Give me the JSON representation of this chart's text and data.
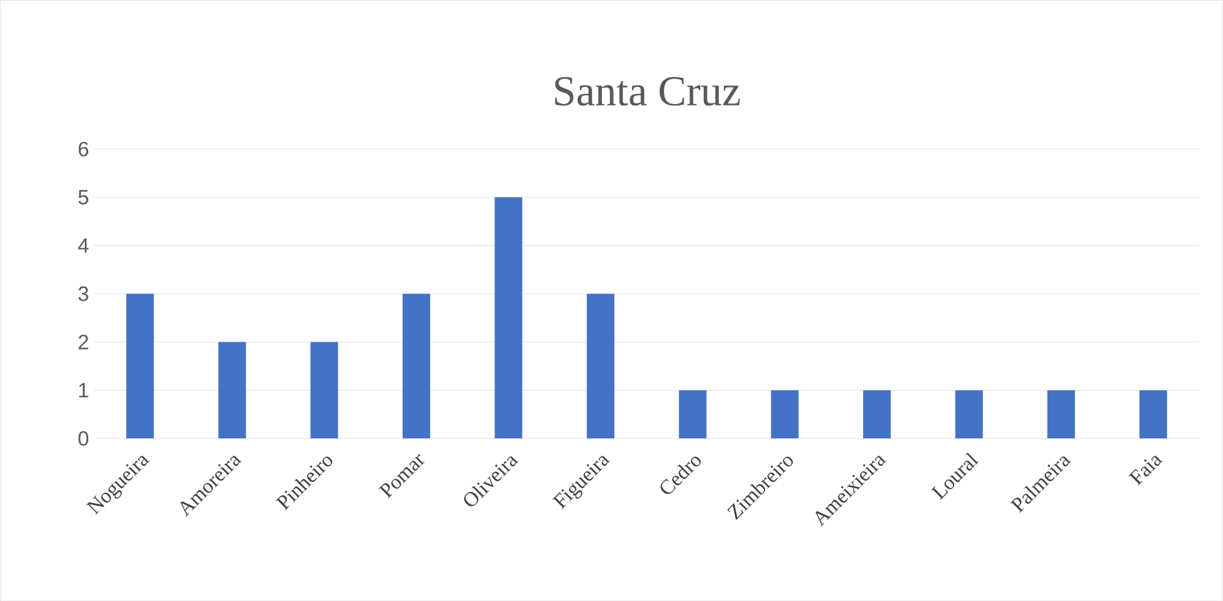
{
  "chart_data": {
    "type": "bar",
    "title": "Santa Cruz",
    "categories": [
      "Nogueira",
      "Amoreira",
      "Pinheiro",
      "Pomar",
      "Oliveira",
      "Figueira",
      "Cedro",
      "Zimbreiro",
      "Ameixieira",
      "Loural",
      "Palmeira",
      "Faia"
    ],
    "values": [
      3,
      2,
      2,
      3,
      5,
      3,
      1,
      1,
      1,
      1,
      1,
      1
    ],
    "color": "#4472c4",
    "ylim": [
      0,
      6
    ],
    "yticks": [
      0,
      1,
      2,
      3,
      4,
      5,
      6
    ],
    "grid": "y"
  }
}
